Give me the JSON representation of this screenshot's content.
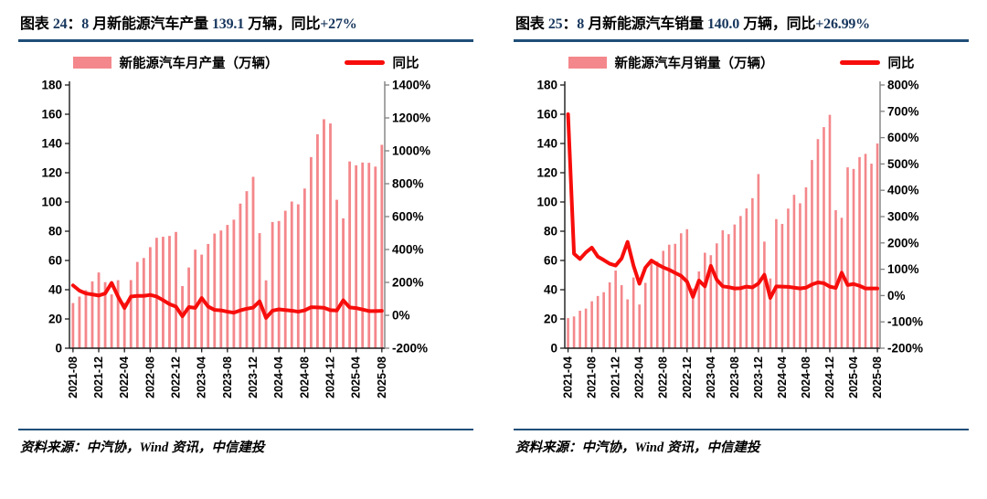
{
  "colors": {
    "accent_navy": "#1F4E79",
    "title_number": "#17365D",
    "bar_fill": "#F4878B",
    "line_red": "#F70D0B",
    "axis_dark": "#1a1a1a",
    "axis_right_gray": "#808080",
    "text": "#000000"
  },
  "panels": [
    {
      "title_parts": [
        {
          "t": "图表 ",
          "n": false
        },
        {
          "t": "24",
          "n": true
        },
        {
          "t": "：",
          "n": false
        },
        {
          "t": "8",
          "n": true
        },
        {
          "t": " 月新能源汽车产量 ",
          "n": false
        },
        {
          "t": "139.1",
          "n": true
        },
        {
          "t": " 万辆，同比",
          "n": false
        },
        {
          "t": "+27%",
          "n": true
        }
      ],
      "legend_bar_label": "新能源汽车月产量（万辆）",
      "legend_line_label": "同比",
      "source": "资料来源：中汽协，Wind 资讯，中信建投"
    },
    {
      "title_parts": [
        {
          "t": "图表 ",
          "n": false
        },
        {
          "t": "25",
          "n": true
        },
        {
          "t": "：",
          "n": false
        },
        {
          "t": "8",
          "n": true
        },
        {
          "t": " 月新能源汽车销量 ",
          "n": false
        },
        {
          "t": "140.0",
          "n": true
        },
        {
          "t": " 万辆，同比",
          "n": false
        },
        {
          "t": "+26.99%",
          "n": true
        }
      ],
      "legend_bar_label": "新能源汽车月销量（万辆）",
      "legend_line_label": "同比",
      "source": "资料来源：中汽协，Wind 资讯，中信建投"
    }
  ],
  "chart_data": [
    {
      "type": "bar",
      "title": "图表 24：8 月新能源汽车产量 139.1 万辆，同比+27%",
      "legend_position": "top",
      "grid": false,
      "categories": [
        "2021-08",
        "2021-09",
        "2021-10",
        "2021-11",
        "2021-12",
        "2022-01",
        "2022-02",
        "2022-03",
        "2022-04",
        "2022-05",
        "2022-06",
        "2022-07",
        "2022-08",
        "2022-09",
        "2022-10",
        "2022-11",
        "2022-12",
        "2023-01",
        "2023-02",
        "2023-03",
        "2023-04",
        "2023-05",
        "2023-06",
        "2023-07",
        "2023-08",
        "2023-09",
        "2023-10",
        "2023-11",
        "2023-12",
        "2024-01",
        "2024-02",
        "2024-03",
        "2024-04",
        "2024-05",
        "2024-06",
        "2024-07",
        "2024-08",
        "2024-09",
        "2024-10",
        "2024-11",
        "2024-12",
        "2025-01",
        "2025-02",
        "2025-03",
        "2025-04",
        "2025-05",
        "2025-06",
        "2025-07",
        "2025-08"
      ],
      "series": [
        {
          "name": "新能源汽车月产量（万辆）",
          "type": "bar",
          "axis": "left",
          "unit": "万辆",
          "values": [
            30.9,
            35.3,
            39.7,
            45.7,
            51.8,
            45.2,
            36.8,
            46.5,
            31.2,
            46.6,
            59.0,
            61.7,
            69.1,
            75.5,
            76.2,
            76.8,
            79.5,
            42.5,
            55.2,
            67.4,
            64.0,
            71.3,
            78.4,
            80.5,
            84.3,
            87.9,
            98.9,
            107.4,
            117.2,
            78.7,
            46.4,
            86.3,
            87.0,
            94.0,
            100.3,
            98.4,
            109.2,
            130.7,
            146.3,
            156.6,
            153.7,
            101.5,
            88.8,
            127.7,
            125.1,
            127.0,
            126.8,
            124.2,
            139.1
          ]
        },
        {
          "name": "同比",
          "type": "line",
          "axis": "right",
          "unit": "%",
          "values": [
            182,
            150,
            133,
            127,
            120,
            133,
            197,
            114,
            44,
            114,
            118,
            118,
            124,
            114,
            92,
            68,
            53,
            -6,
            50,
            45,
            105,
            53,
            33,
            30,
            22,
            16,
            30,
            40,
            47,
            85,
            -16,
            28,
            36,
            32,
            28,
            22,
            30,
            49,
            48,
            46,
            31,
            29,
            91,
            48,
            44,
            35,
            26,
            26,
            27
          ]
        }
      ],
      "left_axis": {
        "min": 0,
        "max": 180,
        "step": 20,
        "tick_labels": [
          "0",
          "20",
          "40",
          "60",
          "80",
          "100",
          "120",
          "140",
          "160",
          "180"
        ]
      },
      "right_axis": {
        "min": -200,
        "max": 1400,
        "step": 200,
        "tick_labels": [
          "-200%",
          "0%",
          "200%",
          "400%",
          "600%",
          "800%",
          "1000%",
          "1200%",
          "1400%"
        ]
      },
      "x_tick_labels": [
        "2021-08",
        "2021-12",
        "2022-04",
        "2022-08",
        "2022-12",
        "2023-04",
        "2023-08",
        "2023-12",
        "2024-04",
        "2024-08",
        "2024-12",
        "2025-04",
        "2025-08"
      ],
      "x_tick_every": 4
    },
    {
      "type": "bar",
      "title": "图表 25：8 月新能源汽车销量 140.0 万辆，同比+26.99%",
      "legend_position": "top",
      "grid": false,
      "categories": [
        "2021-04",
        "2021-05",
        "2021-06",
        "2021-07",
        "2021-08",
        "2021-09",
        "2021-10",
        "2021-11",
        "2021-12",
        "2022-01",
        "2022-02",
        "2022-03",
        "2022-04",
        "2022-05",
        "2022-06",
        "2022-07",
        "2022-08",
        "2022-09",
        "2022-10",
        "2022-11",
        "2022-12",
        "2023-01",
        "2023-02",
        "2023-03",
        "2023-04",
        "2023-05",
        "2023-06",
        "2023-07",
        "2023-08",
        "2023-09",
        "2023-10",
        "2023-11",
        "2023-12",
        "2024-01",
        "2024-02",
        "2024-03",
        "2024-04",
        "2024-05",
        "2024-06",
        "2024-07",
        "2024-08",
        "2024-09",
        "2024-10",
        "2024-11",
        "2024-12",
        "2025-01",
        "2025-02",
        "2025-03",
        "2025-04",
        "2025-05",
        "2025-06",
        "2025-07",
        "2025-08"
      ],
      "series": [
        {
          "name": "新能源汽车月销量（万辆）",
          "type": "bar",
          "axis": "left",
          "unit": "万辆",
          "values": [
            20.6,
            21.7,
            25.6,
            27.1,
            32.1,
            35.7,
            38.3,
            45.0,
            53.1,
            43.1,
            33.4,
            48.4,
            29.9,
            44.7,
            59.6,
            59.3,
            66.6,
            70.8,
            71.4,
            78.6,
            81.4,
            40.8,
            52.5,
            65.3,
            63.6,
            71.7,
            80.6,
            78.0,
            84.6,
            90.4,
            95.6,
            102.6,
            119.1,
            72.9,
            47.7,
            88.3,
            85.0,
            95.5,
            104.9,
            99.1,
            110.0,
            128.7,
            143.0,
            151.2,
            159.6,
            94.4,
            89.2,
            123.7,
            122.6,
            130.7,
            132.9,
            126.2,
            140.0
          ]
        },
        {
          "name": "同比",
          "type": "line",
          "axis": "right",
          "unit": "%",
          "values": [
            689,
            159,
            139,
            164,
            182,
            148,
            135,
            121,
            114,
            141,
            204,
            114,
            45,
            106,
            133,
            119,
            107,
            98,
            86,
            75,
            53,
            -5,
            57,
            35,
            113,
            60,
            35,
            32,
            27,
            28,
            34,
            31,
            46,
            79,
            -9,
            35,
            34,
            33,
            30,
            27,
            30,
            42,
            50,
            47,
            34,
            29,
            87,
            40,
            44,
            37,
            27,
            27,
            27
          ]
        }
      ],
      "left_axis": {
        "min": 0,
        "max": 180,
        "step": 20,
        "tick_labels": [
          "0",
          "20",
          "40",
          "60",
          "80",
          "100",
          "120",
          "140",
          "160",
          "180"
        ]
      },
      "right_axis": {
        "min": -200,
        "max": 800,
        "step": 100,
        "tick_labels": [
          "-200%",
          "-100%",
          "0%",
          "100%",
          "200%",
          "300%",
          "400%",
          "500%",
          "600%",
          "700%",
          "800%"
        ]
      },
      "x_tick_labels": [
        "2021-04",
        "2021-08",
        "2021-12",
        "2022-04",
        "2022-08",
        "2022-12",
        "2023-04",
        "2023-08",
        "2023-12",
        "2024-04",
        "2024-08",
        "2024-12",
        "2025-04",
        "2025-08"
      ],
      "x_tick_every": 4
    }
  ]
}
